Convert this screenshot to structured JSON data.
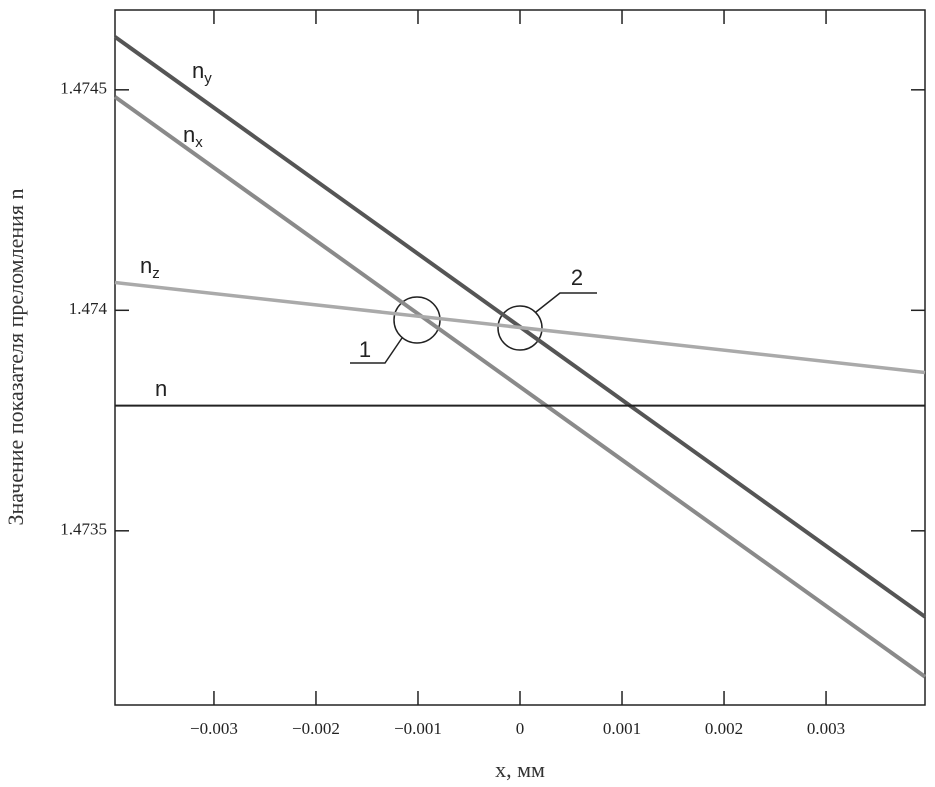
{
  "chart_data": {
    "type": "line",
    "x_label": "x, мм",
    "y_label": "Значение показателя преломления n",
    "x": [
      -0.00397,
      0.00397
    ],
    "series": [
      {
        "name": "n",
        "sub": "y",
        "color": "#555555",
        "values": [
          1.47462,
          1.473305
        ]
      },
      {
        "name": "n",
        "sub": "x",
        "color": "#8a8a8a",
        "values": [
          1.474484,
          1.473169
        ]
      },
      {
        "name": "n",
        "sub": "z",
        "color": "#aaaaaa",
        "values": [
          1.474063,
          1.473859
        ]
      },
      {
        "name": "n",
        "color": "#222222",
        "values": [
          1.473784,
          1.473784
        ]
      }
    ],
    "xlim": [
      -0.00397,
      0.00397
    ],
    "ylim": [
      1.473105,
      1.474681
    ],
    "xticks": [
      {
        "value": -0.003,
        "label": "−0.003"
      },
      {
        "value": -0.002,
        "label": "−0.002"
      },
      {
        "value": -0.001,
        "label": "−0.001"
      },
      0,
      0.001,
      0.002,
      0.003
    ],
    "yticks": [
      1.4735,
      1.474,
      1.4745
    ],
    "annotations": [
      "1",
      "2"
    ]
  }
}
